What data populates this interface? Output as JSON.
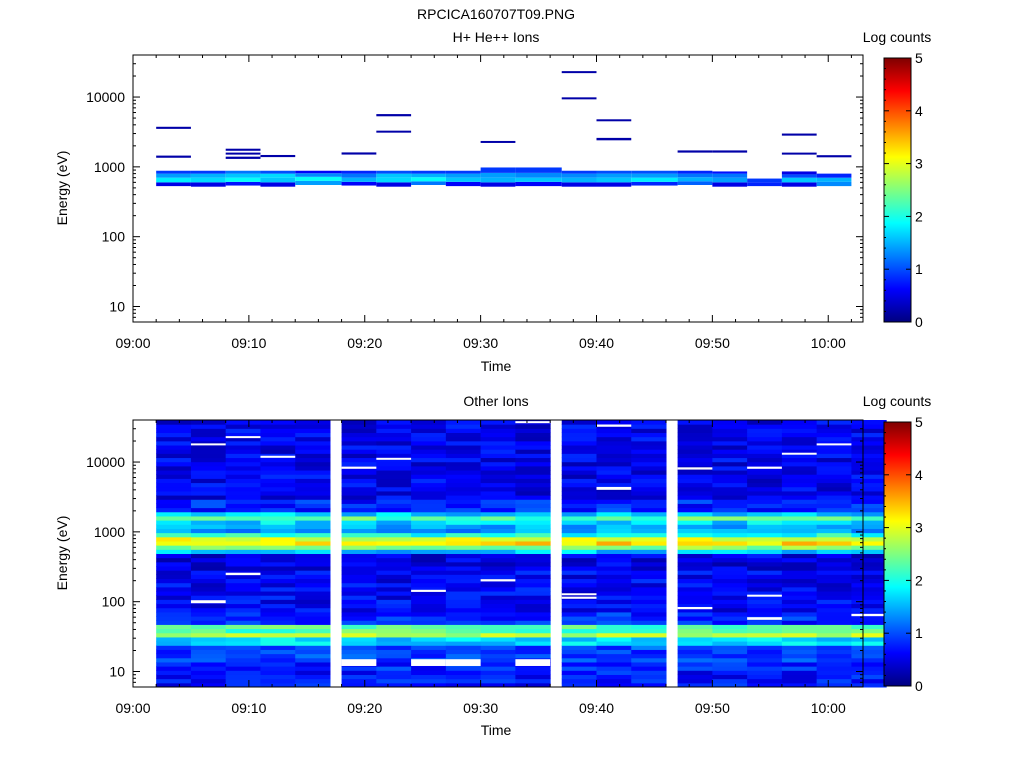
{
  "figure_title": "RPCICA160707T09.PNG",
  "colorbar": {
    "title": "Log counts",
    "range": [
      0,
      5
    ],
    "ticks": [
      "0",
      "1",
      "2",
      "3",
      "4",
      "5"
    ]
  },
  "chart_data": [
    {
      "type": "heatmap",
      "title": "H+ He++ Ions",
      "xlabel": "Time",
      "ylabel": "Energy (eV)",
      "x_range": [
        "09:00",
        "10:03"
      ],
      "x_ticks": [
        "09:00",
        "09:10",
        "09:20",
        "09:30",
        "09:40",
        "09:50",
        "10:00"
      ],
      "y_scale": "log",
      "y_range": [
        6,
        40000
      ],
      "y_ticks": [
        "10",
        "100",
        "1000",
        "10000"
      ],
      "grid": false,
      "columns": [
        {
          "t0": "09:02",
          "t1": "09:05",
          "cells": [
            {
              "e0": 530,
              "e1": 600,
              "v": 0.5
            },
            {
              "e0": 600,
              "e1": 700,
              "v": 1.8
            },
            {
              "e0": 700,
              "e1": 800,
              "v": 1.4
            },
            {
              "e0": 800,
              "e1": 880,
              "v": 0.9
            },
            {
              "e0": 1350,
              "e1": 1450,
              "v": 0.2
            },
            {
              "e0": 3500,
              "e1": 3750,
              "v": 0.2
            }
          ]
        },
        {
          "t0": "09:05",
          "t1": "09:08",
          "cells": [
            {
              "e0": 520,
              "e1": 600,
              "v": 0.5
            },
            {
              "e0": 600,
              "e1": 700,
              "v": 1.7
            },
            {
              "e0": 700,
              "e1": 800,
              "v": 1.5
            },
            {
              "e0": 800,
              "e1": 880,
              "v": 0.9
            }
          ]
        },
        {
          "t0": "09:08",
          "t1": "09:11",
          "cells": [
            {
              "e0": 540,
              "e1": 610,
              "v": 0.7
            },
            {
              "e0": 610,
              "e1": 700,
              "v": 1.9
            },
            {
              "e0": 700,
              "e1": 800,
              "v": 1.6
            },
            {
              "e0": 800,
              "e1": 880,
              "v": 1.2
            },
            {
              "e0": 1300,
              "e1": 1400,
              "v": 0.2
            },
            {
              "e0": 1500,
              "e1": 1600,
              "v": 0.2
            },
            {
              "e0": 1700,
              "e1": 1820,
              "v": 0.2
            }
          ]
        },
        {
          "t0": "09:11",
          "t1": "09:14",
          "cells": [
            {
              "e0": 520,
              "e1": 600,
              "v": 0.5
            },
            {
              "e0": 600,
              "e1": 700,
              "v": 1.6
            },
            {
              "e0": 700,
              "e1": 800,
              "v": 1.7
            },
            {
              "e0": 800,
              "e1": 880,
              "v": 1.0
            },
            {
              "e0": 1380,
              "e1": 1480,
              "v": 0.2
            }
          ]
        },
        {
          "t0": "09:14",
          "t1": "09:18",
          "cells": [
            {
              "e0": 550,
              "e1": 630,
              "v": 1.4
            },
            {
              "e0": 630,
              "e1": 720,
              "v": 1.9
            },
            {
              "e0": 720,
              "e1": 810,
              "v": 1.3
            },
            {
              "e0": 810,
              "e1": 880,
              "v": 0.6
            }
          ]
        },
        {
          "t0": "09:18",
          "t1": "09:21",
          "cells": [
            {
              "e0": 540,
              "e1": 610,
              "v": 0.6
            },
            {
              "e0": 610,
              "e1": 700,
              "v": 1.5
            },
            {
              "e0": 700,
              "e1": 800,
              "v": 1.2
            },
            {
              "e0": 800,
              "e1": 880,
              "v": 0.8
            },
            {
              "e0": 1500,
              "e1": 1610,
              "v": 0.2
            }
          ]
        },
        {
          "t0": "09:21",
          "t1": "09:24",
          "cells": [
            {
              "e0": 520,
              "e1": 600,
              "v": 0.5
            },
            {
              "e0": 600,
              "e1": 700,
              "v": 1.7
            },
            {
              "e0": 700,
              "e1": 800,
              "v": 1.6
            },
            {
              "e0": 800,
              "e1": 880,
              "v": 1.0
            },
            {
              "e0": 3100,
              "e1": 3300,
              "v": 0.2
            },
            {
              "e0": 5300,
              "e1": 5700,
              "v": 0.2
            }
          ]
        },
        {
          "t0": "09:24",
          "t1": "09:27",
          "cells": [
            {
              "e0": 550,
              "e1": 620,
              "v": 1.2
            },
            {
              "e0": 620,
              "e1": 710,
              "v": 1.9
            },
            {
              "e0": 710,
              "e1": 800,
              "v": 1.5
            },
            {
              "e0": 800,
              "e1": 880,
              "v": 0.9
            }
          ]
        },
        {
          "t0": "09:27",
          "t1": "09:30",
          "cells": [
            {
              "e0": 530,
              "e1": 610,
              "v": 0.6
            },
            {
              "e0": 610,
              "e1": 700,
              "v": 1.6
            },
            {
              "e0": 700,
              "e1": 800,
              "v": 1.4
            },
            {
              "e0": 800,
              "e1": 880,
              "v": 0.9
            }
          ]
        },
        {
          "t0": "09:30",
          "t1": "09:33",
          "cells": [
            {
              "e0": 520,
              "e1": 600,
              "v": 0.5
            },
            {
              "e0": 600,
              "e1": 700,
              "v": 1.5
            },
            {
              "e0": 700,
              "e1": 820,
              "v": 1.4
            },
            {
              "e0": 820,
              "e1": 980,
              "v": 0.9
            },
            {
              "e0": 2200,
              "e1": 2350,
              "v": 0.2
            }
          ]
        },
        {
          "t0": "09:33",
          "t1": "09:37",
          "cells": [
            {
              "e0": 530,
              "e1": 610,
              "v": 0.6
            },
            {
              "e0": 610,
              "e1": 700,
              "v": 1.6
            },
            {
              "e0": 700,
              "e1": 820,
              "v": 1.3
            },
            {
              "e0": 820,
              "e1": 980,
              "v": 0.9
            }
          ]
        },
        {
          "t0": "09:37",
          "t1": "09:40",
          "cells": [
            {
              "e0": 520,
              "e1": 600,
              "v": 0.5
            },
            {
              "e0": 600,
              "e1": 700,
              "v": 1.5
            },
            {
              "e0": 700,
              "e1": 800,
              "v": 1.3
            },
            {
              "e0": 800,
              "e1": 880,
              "v": 0.9
            },
            {
              "e0": 9300,
              "e1": 9900,
              "v": 0.2
            },
            {
              "e0": 22000,
              "e1": 23500,
              "v": 0.2
            }
          ]
        },
        {
          "t0": "09:40",
          "t1": "09:43",
          "cells": [
            {
              "e0": 520,
              "e1": 600,
              "v": 0.5
            },
            {
              "e0": 600,
              "e1": 700,
              "v": 1.6
            },
            {
              "e0": 700,
              "e1": 800,
              "v": 1.4
            },
            {
              "e0": 800,
              "e1": 880,
              "v": 1.0
            },
            {
              "e0": 2400,
              "e1": 2600,
              "v": 0.2
            },
            {
              "e0": 4500,
              "e1": 4800,
              "v": 0.2
            }
          ]
        },
        {
          "t0": "09:43",
          "t1": "09:47",
          "cells": [
            {
              "e0": 540,
              "e1": 610,
              "v": 0.8
            },
            {
              "e0": 610,
              "e1": 700,
              "v": 1.8
            },
            {
              "e0": 700,
              "e1": 800,
              "v": 1.4
            },
            {
              "e0": 800,
              "e1": 880,
              "v": 1.0
            }
          ]
        },
        {
          "t0": "09:47",
          "t1": "09:50",
          "cells": [
            {
              "e0": 550,
              "e1": 620,
              "v": 1.1
            },
            {
              "e0": 620,
              "e1": 710,
              "v": 1.5
            },
            {
              "e0": 710,
              "e1": 800,
              "v": 1.2
            },
            {
              "e0": 800,
              "e1": 880,
              "v": 0.8
            },
            {
              "e0": 1600,
              "e1": 1720,
              "v": 0.2
            }
          ]
        },
        {
          "t0": "09:50",
          "t1": "09:53",
          "cells": [
            {
              "e0": 520,
              "e1": 600,
              "v": 0.5
            },
            {
              "e0": 600,
              "e1": 700,
              "v": 1.4
            },
            {
              "e0": 700,
              "e1": 800,
              "v": 1.2
            },
            {
              "e0": 800,
              "e1": 860,
              "v": 0.7
            },
            {
              "e0": 1600,
              "e1": 1720,
              "v": 0.2
            }
          ]
        },
        {
          "t0": "09:53",
          "t1": "09:56",
          "cells": [
            {
              "e0": 530,
              "e1": 600,
              "v": 0.8
            },
            {
              "e0": 600,
              "e1": 680,
              "v": 0.9
            }
          ]
        },
        {
          "t0": "09:56",
          "t1": "09:59",
          "cells": [
            {
              "e0": 520,
              "e1": 600,
              "v": 0.5
            },
            {
              "e0": 600,
              "e1": 700,
              "v": 1.6
            },
            {
              "e0": 700,
              "e1": 780,
              "v": 1.0
            },
            {
              "e0": 780,
              "e1": 860,
              "v": 0.5
            },
            {
              "e0": 1500,
              "e1": 1600,
              "v": 0.2
            },
            {
              "e0": 2800,
              "e1": 3000,
              "v": 0.2
            }
          ]
        },
        {
          "t0": "09:59",
          "t1": "10:02",
          "cells": [
            {
              "e0": 530,
              "e1": 610,
              "v": 1.3
            },
            {
              "e0": 610,
              "e1": 700,
              "v": 1.5
            },
            {
              "e0": 700,
              "e1": 800,
              "v": 0.8
            },
            {
              "e0": 1370,
              "e1": 1470,
              "v": 0.2
            }
          ]
        }
      ]
    },
    {
      "type": "heatmap",
      "title": "Other Ions",
      "xlabel": "Time",
      "ylabel": "Energy (eV)",
      "x_range": [
        "09:00",
        "10:03"
      ],
      "x_ticks": [
        "09:00",
        "09:10",
        "09:20",
        "09:30",
        "09:40",
        "09:50",
        "10:00"
      ],
      "y_scale": "log",
      "y_range": [
        6,
        40000
      ],
      "y_ticks": [
        "10",
        "100",
        "1000",
        "10000"
      ],
      "grid": false,
      "time_bins": [
        "09:02",
        "09:05",
        "09:08",
        "09:11",
        "09:14",
        "09:18",
        "09:21",
        "09:24",
        "09:27",
        "09:30",
        "09:33",
        "09:37",
        "09:40",
        "09:43",
        "09:47",
        "09:50",
        "09:53",
        "09:56",
        "09:59",
        "10:02"
      ],
      "energy_bands": [
        {
          "e0": 6,
          "e1": 10,
          "v": 0.7
        },
        {
          "e0": 10,
          "e1": 14,
          "v": 0.8
        },
        {
          "e0": 14,
          "e1": 20,
          "v": 0.9
        },
        {
          "e0": 20,
          "e1": 25,
          "v": 1.0
        },
        {
          "e0": 25,
          "e1": 31,
          "v": 1.7
        },
        {
          "e0": 31,
          "e1": 38,
          "v": 2.8
        },
        {
          "e0": 38,
          "e1": 45,
          "v": 2.3
        },
        {
          "e0": 45,
          "e1": 70,
          "v": 0.8
        },
        {
          "e0": 70,
          "e1": 300,
          "v": 0.6
        },
        {
          "e0": 300,
          "e1": 500,
          "v": 0.5
        },
        {
          "e0": 500,
          "e1": 560,
          "v": 1.6
        },
        {
          "e0": 560,
          "e1": 640,
          "v": 2.6
        },
        {
          "e0": 640,
          "e1": 740,
          "v": 3.3
        },
        {
          "e0": 740,
          "e1": 860,
          "v": 3.0
        },
        {
          "e0": 860,
          "e1": 1000,
          "v": 2.0
        },
        {
          "e0": 1000,
          "e1": 1200,
          "v": 1.4
        },
        {
          "e0": 1200,
          "e1": 1400,
          "v": 1.7
        },
        {
          "e0": 1400,
          "e1": 1650,
          "v": 2.3
        },
        {
          "e0": 1650,
          "e1": 2000,
          "v": 1.6
        },
        {
          "e0": 2000,
          "e1": 3000,
          "v": 0.8
        },
        {
          "e0": 3000,
          "e1": 40000,
          "v": 0.55
        }
      ],
      "empty_cells": [
        {
          "t": "09:18",
          "e0": 12,
          "e1": 15
        },
        {
          "t": "09:24",
          "e0": 12,
          "e1": 15
        },
        {
          "t": "09:27",
          "e0": 12,
          "e1": 15
        },
        {
          "t": "09:33",
          "e0": 12,
          "e1": 15
        },
        {
          "t": "09:05",
          "e0": 17500,
          "e1": 18500
        },
        {
          "t": "09:08",
          "e0": 22000,
          "e1": 23500
        },
        {
          "t": "09:11",
          "e0": 11500,
          "e1": 12300
        },
        {
          "t": "09:18",
          "e0": 8000,
          "e1": 8600
        },
        {
          "t": "09:21",
          "e0": 10800,
          "e1": 11500
        },
        {
          "t": "09:33",
          "e0": 36000,
          "e1": 38500
        },
        {
          "t": "09:40",
          "e0": 32000,
          "e1": 34500
        },
        {
          "t": "09:40",
          "e0": 4000,
          "e1": 4400
        },
        {
          "t": "09:47",
          "e0": 7800,
          "e1": 8400
        },
        {
          "t": "09:53",
          "e0": 8000,
          "e1": 8600
        },
        {
          "t": "09:56",
          "e0": 12800,
          "e1": 13600
        },
        {
          "t": "09:59",
          "e0": 17500,
          "e1": 18500
        },
        {
          "t": "09:05",
          "e0": 95,
          "e1": 105
        },
        {
          "t": "09:08",
          "e0": 240,
          "e1": 260
        },
        {
          "t": "09:24",
          "e0": 138,
          "e1": 148
        },
        {
          "t": "09:30",
          "e0": 195,
          "e1": 210
        },
        {
          "t": "09:37",
          "e0": 110,
          "e1": 118
        },
        {
          "t": "09:37",
          "e0": 124,
          "e1": 132
        },
        {
          "t": "09:47",
          "e0": 78,
          "e1": 84
        },
        {
          "t": "09:53",
          "e0": 55,
          "e1": 60
        },
        {
          "t": "09:53",
          "e0": 118,
          "e1": 126
        },
        {
          "t": "10:02",
          "e0": 62,
          "e1": 67
        }
      ]
    }
  ]
}
